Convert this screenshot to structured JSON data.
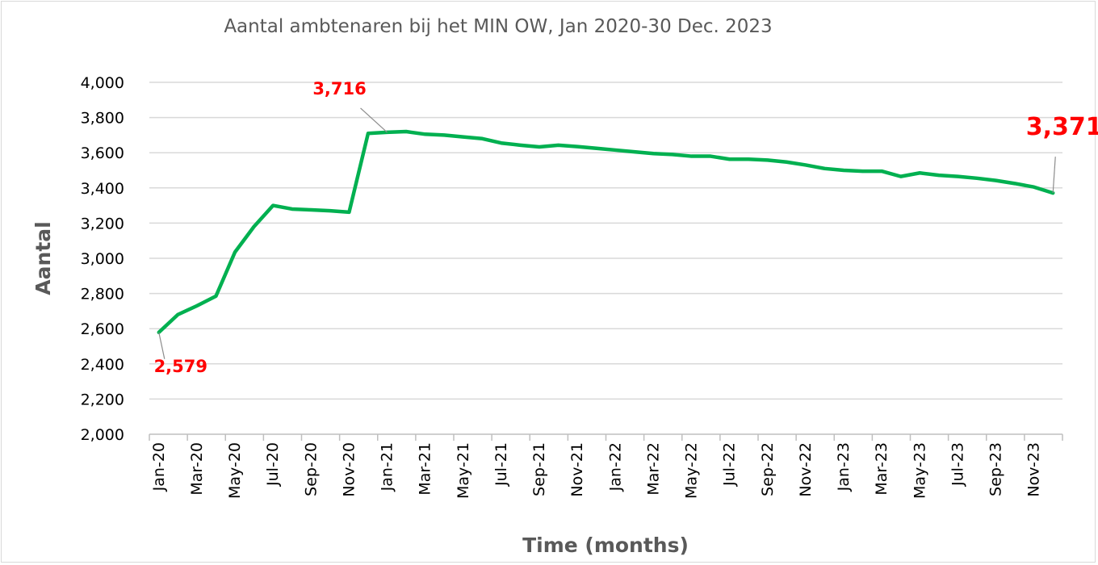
{
  "chart_data": {
    "type": "line",
    "title": "Aantal ambtenaren bij het MIN OW, Jan 2020-30 Dec. 2023",
    "xlabel": "Time (months)",
    "ylabel": "Aantal",
    "ylim": [
      2000,
      4000
    ],
    "yticks": [
      2000,
      2200,
      2400,
      2600,
      2800,
      3000,
      3200,
      3400,
      3600,
      3800,
      4000
    ],
    "ytick_labels": [
      "2,000",
      "2,200",
      "2,400",
      "2,600",
      "2,800",
      "3,000",
      "3,200",
      "3,400",
      "3,600",
      "3,800",
      "4,000"
    ],
    "grid": true,
    "legend": "none",
    "x_tick_labels": [
      "Jan-20",
      "Mar-20",
      "May-20",
      "Jul-20",
      "Sep-20",
      "Nov-20",
      "Jan-21",
      "Mar-21",
      "May-21",
      "Jul-21",
      "Sep-21",
      "Nov-21",
      "Jan-22",
      "Mar-22",
      "May-22",
      "Jul-22",
      "Sep-22",
      "Nov-22",
      "Jan-23",
      "Mar-23",
      "May-23",
      "Jul-23",
      "Sep-23",
      "Nov-23"
    ],
    "x": [
      "Jan-20",
      "Feb-20",
      "Mar-20",
      "Apr-20",
      "May-20",
      "Jun-20",
      "Jul-20",
      "Aug-20",
      "Sep-20",
      "Oct-20",
      "Nov-20",
      "Dec-20",
      "Jan-21",
      "Feb-21",
      "Mar-21",
      "Apr-21",
      "May-21",
      "Jun-21",
      "Jul-21",
      "Aug-21",
      "Sep-21",
      "Oct-21",
      "Nov-21",
      "Dec-21",
      "Jan-22",
      "Feb-22",
      "Mar-22",
      "Apr-22",
      "May-22",
      "Jun-22",
      "Jul-22",
      "Aug-22",
      "Sep-22",
      "Oct-22",
      "Nov-22",
      "Dec-22",
      "Jan-23",
      "Feb-23",
      "Mar-23",
      "Apr-23",
      "May-23",
      "Jun-23",
      "Jul-23",
      "Aug-23",
      "Sep-23",
      "Oct-23",
      "Nov-23",
      "Dec-23"
    ],
    "series": [
      {
        "color": "#00b050",
        "values": [
          2579,
          2680,
          2730,
          2785,
          3035,
          3180,
          3300,
          3280,
          3275,
          3270,
          3262,
          3710,
          3716,
          3720,
          3705,
          3700,
          3690,
          3680,
          3655,
          3643,
          3633,
          3643,
          3635,
          3625,
          3615,
          3605,
          3595,
          3590,
          3580,
          3580,
          3563,
          3563,
          3558,
          3547,
          3530,
          3510,
          3500,
          3495,
          3495,
          3465,
          3485,
          3472,
          3465,
          3455,
          3442,
          3425,
          3405,
          3371
        ]
      }
    ],
    "annotations": [
      {
        "text": "2,579",
        "color": "#ff0000",
        "x": "Jan-20",
        "y": 2579
      },
      {
        "text": "3,716",
        "color": "#ff0000",
        "x": "Jan-21",
        "y": 3716
      },
      {
        "text": "3,371",
        "color": "#ff0000",
        "x": "Dec-23",
        "y": 3371
      }
    ]
  }
}
